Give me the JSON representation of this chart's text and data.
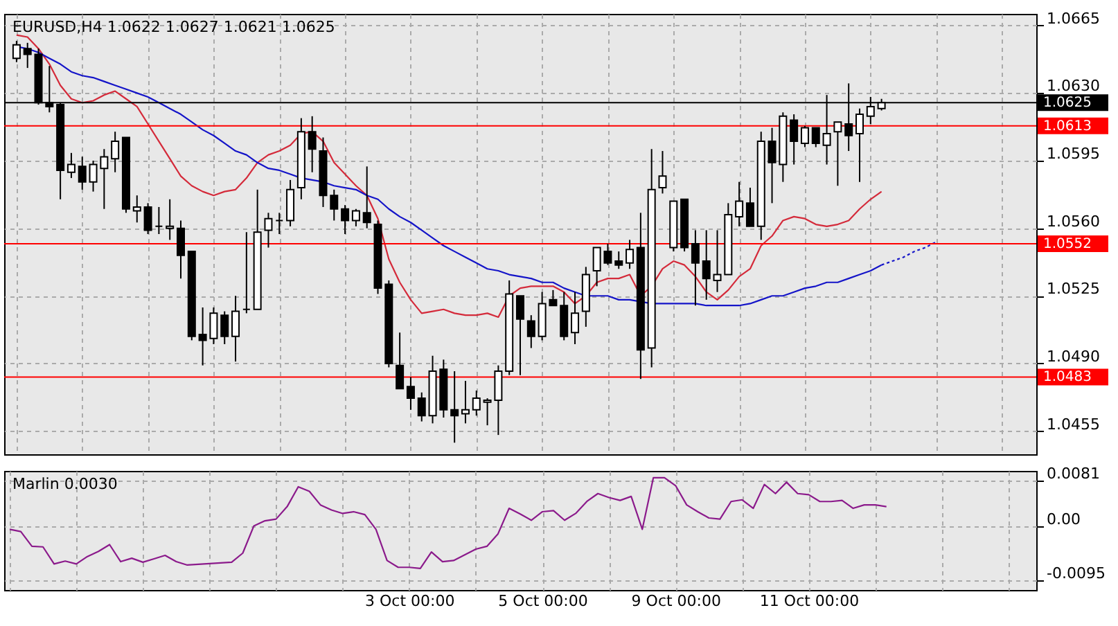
{
  "chart_data": [
    {
      "type": "candlestick",
      "title": "EURUSD,H4 1.0622 1.0627 1.0621 1.0625",
      "categories": [
        null,
        null,
        null,
        null,
        null,
        null,
        null,
        null,
        null,
        null,
        null,
        null,
        null,
        null,
        null,
        null,
        null,
        null,
        null,
        null,
        null,
        null,
        null,
        null,
        null,
        null,
        null,
        null,
        null,
        null,
        null,
        null,
        null,
        null,
        null,
        null,
        null,
        null,
        null,
        null,
        null,
        null,
        null,
        null,
        null,
        null,
        null,
        null,
        null,
        null,
        null,
        null,
        null,
        null,
        null,
        null,
        null,
        null,
        null,
        null,
        null,
        null,
        null,
        null,
        null,
        null,
        null,
        null,
        null,
        null,
        null,
        null,
        null,
        null,
        null,
        null,
        null,
        null,
        null,
        null,
        null,
        null,
        null,
        null,
        null
      ],
      "ohlc": [
        [
          1.0648,
          1.0657,
          1.0646,
          1.0655
        ],
        [
          1.0653,
          1.0656,
          1.0643,
          1.065
        ],
        [
          1.065,
          1.0653,
          1.0624,
          1.0625
        ],
        [
          1.0625,
          1.0644,
          1.062,
          1.0623
        ],
        [
          1.0624,
          1.0625,
          1.0575,
          1.059
        ],
        [
          1.0589,
          1.0599,
          1.0586,
          1.0593
        ],
        [
          1.0592,
          1.0597,
          1.058,
          1.0584
        ],
        [
          1.0584,
          1.0595,
          1.0579,
          1.0593
        ],
        [
          1.0591,
          1.0601,
          1.057,
          1.0597
        ],
        [
          1.0596,
          1.061,
          1.0589,
          1.0605
        ],
        [
          1.0607,
          1.0607,
          1.0568,
          1.057
        ],
        [
          1.0569,
          1.0577,
          1.0563,
          1.0571
        ],
        [
          1.0571,
          1.0573,
          1.0557,
          1.0559
        ],
        [
          1.0561,
          1.0571,
          1.0557,
          1.0561
        ],
        [
          1.056,
          1.0575,
          1.0554,
          1.0561
        ],
        [
          1.056,
          1.0564,
          1.0534,
          1.0546
        ],
        [
          1.0548,
          1.0548,
          1.0502,
          1.0504
        ],
        [
          1.0505,
          1.0519,
          1.0489,
          1.0502
        ],
        [
          1.0503,
          1.0519,
          1.05,
          1.0516
        ],
        [
          1.0515,
          1.0517,
          1.05,
          1.0504
        ],
        [
          1.0504,
          1.0525,
          1.0491,
          1.0517
        ],
        [
          1.0518,
          1.0558,
          1.0516,
          1.0518
        ],
        [
          1.0518,
          1.058,
          1.0518,
          1.0558
        ],
        [
          1.0559,
          1.0568,
          1.055,
          1.0565
        ],
        [
          1.0564,
          1.0568,
          1.0557,
          1.0564
        ],
        [
          1.0564,
          1.0585,
          1.0561,
          1.058
        ],
        [
          1.0581,
          1.0617,
          1.0575,
          1.061
        ],
        [
          1.061,
          1.0618,
          1.0589,
          1.0601
        ],
        [
          1.06,
          1.0607,
          1.0571,
          1.0577
        ],
        [
          1.0577,
          1.058,
          1.0564,
          1.057
        ],
        [
          1.057,
          1.0572,
          1.0557,
          1.0564
        ],
        [
          1.0564,
          1.057,
          1.0561,
          1.0569
        ],
        [
          1.0568,
          1.0592,
          1.056,
          1.0563
        ],
        [
          1.0562,
          1.0564,
          1.0526,
          1.0529
        ],
        [
          1.0531,
          1.0533,
          1.0488,
          1.049
        ],
        [
          1.0489,
          1.0506,
          1.0477,
          1.0477
        ],
        [
          1.0478,
          1.0483,
          1.0466,
          1.0472
        ],
        [
          1.0472,
          1.0475,
          1.046,
          1.0463
        ],
        [
          1.0463,
          1.0494,
          1.0459,
          1.0486
        ],
        [
          1.0487,
          1.0492,
          1.0462,
          1.0466
        ],
        [
          1.0466,
          1.0486,
          1.0449,
          1.0463
        ],
        [
          1.0464,
          1.0481,
          1.0459,
          1.0466
        ],
        [
          1.0466,
          1.0476,
          1.0463,
          1.0472
        ],
        [
          1.047,
          1.0472,
          1.0458,
          1.0471
        ],
        [
          1.0471,
          1.0489,
          1.0453,
          1.0486
        ],
        [
          1.0486,
          1.0533,
          1.0484,
          1.0526
        ],
        [
          1.0525,
          1.0525,
          1.0484,
          1.0513
        ],
        [
          1.0512,
          1.0515,
          1.0498,
          1.0504
        ],
        [
          1.0504,
          1.0527,
          1.0502,
          1.0521
        ],
        [
          1.0523,
          1.0528,
          1.052,
          1.052
        ],
        [
          1.052,
          1.0527,
          1.0502,
          1.0504
        ],
        [
          1.0506,
          1.0527,
          1.05,
          1.0516
        ],
        [
          1.0517,
          1.054,
          1.0509,
          1.0536
        ],
        [
          1.0538,
          1.055,
          1.053,
          1.055
        ],
        [
          1.0548,
          1.0552,
          1.0541,
          1.0542
        ],
        [
          1.0543,
          1.0548,
          1.0539,
          1.0541
        ],
        [
          1.0542,
          1.0554,
          1.0539,
          1.0549
        ],
        [
          1.055,
          1.0568,
          1.0482,
          1.0497
        ],
        [
          1.0498,
          1.0601,
          1.0488,
          1.058
        ],
        [
          1.0581,
          1.06,
          1.0578,
          1.0587
        ],
        [
          1.055,
          1.0574,
          1.0548,
          1.0574
        ],
        [
          1.0575,
          1.0575,
          1.0548,
          1.055
        ],
        [
          1.0552,
          1.0559,
          1.052,
          1.0542
        ],
        [
          1.0543,
          1.0559,
          1.0523,
          1.0534
        ],
        [
          1.0533,
          1.0559,
          1.0527,
          1.0536
        ],
        [
          1.0536,
          1.0573,
          1.0536,
          1.0567
        ],
        [
          1.0566,
          1.0584,
          1.0561,
          1.0574
        ],
        [
          1.0573,
          1.0581,
          1.0561,
          1.0561
        ],
        [
          1.0561,
          1.061,
          1.0554,
          1.0605
        ],
        [
          1.0605,
          1.0612,
          1.0573,
          1.0594
        ],
        [
          1.0593,
          1.062,
          1.0584,
          1.0618
        ],
        [
          1.0616,
          1.0619,
          1.0593,
          1.0605
        ],
        [
          1.0604,
          1.0613,
          1.0602,
          1.0612
        ],
        [
          1.0612,
          1.0612,
          1.0602,
          1.0604
        ],
        [
          1.0603,
          1.0629,
          1.0593,
          1.0609
        ],
        [
          1.061,
          1.0615,
          1.0582,
          1.0615
        ],
        [
          1.0614,
          1.0635,
          1.06,
          1.0608
        ],
        [
          1.0609,
          1.0622,
          1.0584,
          1.0619
        ],
        [
          1.0618,
          1.0628,
          1.0614,
          1.0623
        ],
        [
          1.0622,
          1.0627,
          1.0621,
          1.0625
        ],
        null,
        null,
        null,
        null,
        null
      ],
      "series": [
        {
          "type": "line",
          "color": "#d42a3a",
          "values": [
            1.066,
            1.0659,
            1.0653,
            1.0645,
            1.0634,
            1.0627,
            1.0625,
            1.0626,
            1.0629,
            1.0631,
            1.0627,
            1.0623,
            1.0614,
            1.0605,
            1.0596,
            1.0587,
            1.0582,
            1.0579,
            1.0577,
            1.0579,
            1.058,
            1.0586,
            1.0594,
            1.0598,
            1.06,
            1.0603,
            1.0609,
            1.061,
            1.0605,
            1.0594,
            1.0588,
            1.0582,
            1.0577,
            1.0565,
            1.0544,
            1.0532,
            1.0523,
            1.0516,
            1.0517,
            1.0518,
            1.0516,
            1.0515,
            1.0515,
            1.0516,
            1.0514,
            1.0525,
            1.0529,
            1.053,
            1.053,
            1.053,
            1.0527,
            1.0521,
            1.0525,
            1.0532,
            1.0534,
            1.0534,
            1.0536,
            1.0525,
            1.053,
            1.0539,
            1.0543,
            1.0541,
            1.0535,
            1.0527,
            1.0523,
            1.0528,
            1.0535,
            1.0539,
            1.0551,
            1.0556,
            1.0564,
            1.0566,
            1.0565,
            1.0562,
            1.0561,
            1.0562,
            1.0564,
            1.057,
            1.0575,
            1.0579,
            null,
            null,
            null,
            null,
            null
          ]
        },
        {
          "type": "line",
          "color": "#1414c8",
          "values": [
            1.0654,
            1.0653,
            1.0651,
            1.0648,
            1.0645,
            1.0641,
            1.0639,
            1.0638,
            1.0636,
            1.0634,
            1.0632,
            1.063,
            1.0628,
            1.0625,
            1.0622,
            1.0619,
            1.0615,
            1.0611,
            1.0608,
            1.0604,
            1.06,
            1.0598,
            1.0594,
            1.0591,
            1.059,
            1.0588,
            1.0586,
            1.0585,
            1.0584,
            1.0582,
            1.0581,
            1.058,
            1.0577,
            1.0575,
            1.057,
            1.0566,
            1.0563,
            1.0559,
            1.0555,
            1.0551,
            1.0548,
            1.0545,
            1.0542,
            1.0539,
            1.0538,
            1.0536,
            1.0535,
            1.0534,
            1.0532,
            1.0532,
            1.0529,
            1.0527,
            1.0525,
            1.0525,
            1.0525,
            1.0523,
            1.0523,
            1.0522,
            1.0521,
            1.0521,
            1.0521,
            1.0521,
            1.0521,
            1.052,
            1.052,
            1.052,
            1.052,
            1.0521,
            1.0523,
            1.0525,
            1.0525,
            1.0527,
            1.0529,
            1.053,
            1.0532,
            1.0532,
            1.0534,
            1.0536,
            1.0538,
            1.0541,
            null,
            null,
            null,
            null,
            null
          ]
        },
        {
          "type": "line",
          "color": "#1414c8",
          "line_style": "dotted",
          "values": [
            null,
            null,
            null,
            null,
            null,
            null,
            null,
            null,
            null,
            null,
            null,
            null,
            null,
            null,
            null,
            null,
            null,
            null,
            null,
            null,
            null,
            null,
            null,
            null,
            null,
            null,
            null,
            null,
            null,
            null,
            null,
            null,
            null,
            null,
            null,
            null,
            null,
            null,
            null,
            null,
            null,
            null,
            null,
            null,
            null,
            null,
            null,
            null,
            null,
            null,
            null,
            null,
            null,
            null,
            null,
            null,
            null,
            null,
            null,
            null,
            null,
            null,
            null,
            null,
            null,
            null,
            null,
            null,
            null,
            null,
            null,
            null,
            null,
            null,
            null,
            null,
            null,
            null,
            null,
            1.0541,
            1.0543,
            1.0545,
            1.0548,
            1.055,
            1.0553
          ]
        }
      ],
      "ylim": [
        1.0443,
        1.0671
      ],
      "yticks": [
        1.0455,
        {
          "value": 1.049,
          "label": "1.0490"
        },
        1.0525,
        {
          "value": 1.056,
          "label": "1.0560"
        },
        1.0595,
        {
          "value": 1.063,
          "label": "1.0630"
        },
        1.0665
      ],
      "grid": true,
      "tick_labels": "y",
      "ref_lines": [
        {
          "axis": "y",
          "value": 1.0613,
          "label": "1.0613",
          "color": "#ff0000"
        },
        {
          "axis": "y",
          "value": 1.0552,
          "label": "1.0552",
          "color": "#ff0000"
        },
        {
          "axis": "y",
          "value": 1.0483,
          "label": "1.0483",
          "color": "#ff0000"
        },
        {
          "axis": "y",
          "value": 1.0625,
          "label": "1.0625",
          "color": "#000000"
        }
      ]
    },
    {
      "type": "line",
      "title": "Marlin 0.0030",
      "categories": [
        null,
        null,
        null,
        null,
        null,
        null,
        null,
        null,
        null,
        null,
        null,
        null,
        null,
        null,
        null,
        null,
        null,
        null,
        null,
        null,
        null,
        null,
        null,
        null,
        null,
        null,
        null,
        null,
        null,
        null,
        null,
        null,
        null,
        null,
        null,
        null,
        "3 Oct 00:00",
        null,
        null,
        null,
        null,
        null,
        null,
        null,
        null,
        null,
        null,
        null,
        "5 Oct 00:00",
        null,
        null,
        null,
        null,
        null,
        null,
        null,
        null,
        null,
        null,
        null,
        "9 Oct 00:00",
        null,
        null,
        null,
        null,
        null,
        null,
        null,
        null,
        null,
        null,
        null,
        "11 Oct 00:00",
        null,
        null,
        null,
        null,
        null,
        null,
        null,
        null,
        null,
        null,
        null,
        null
      ],
      "series": [
        {
          "color": "#8b1a8b",
          "values": [
            -0.0005,
            -0.0009,
            -0.0035,
            -0.0036,
            -0.0066,
            -0.0061,
            -0.0066,
            -0.0053,
            -0.0044,
            -0.0032,
            -0.0062,
            -0.0056,
            -0.0063,
            -0.0057,
            -0.0051,
            -0.0062,
            -0.0068,
            null,
            null,
            null,
            -0.0063,
            -0.0047,
            0.0001,
            0.001,
            0.0013,
            0.0035,
            0.007,
            0.0062,
            0.0038,
            0.0029,
            0.0023,
            0.0026,
            0.0021,
            -0.0005,
            -0.006,
            -0.0072,
            -0.0072,
            -0.0074,
            -0.0045,
            -0.0062,
            -0.006,
            -0.005,
            -0.004,
            -0.0035,
            -0.0013,
            0.0032,
            0.0022,
            0.0011,
            0.0026,
            0.0028,
            0.0011,
            0.0023,
            0.0044,
            0.0058,
            0.0051,
            0.0046,
            0.0053,
            -0.0005,
            0.0086,
            0.0086,
            0.0072,
            0.0038,
            0.0026,
            0.0015,
            0.0013,
            0.0044,
            0.0047,
            0.0032,
            0.0074,
            0.0058,
            0.0078,
            0.0058,
            0.0056,
            0.0044,
            0.0044,
            0.0046,
            0.0032,
            0.0038,
            0.0038,
            0.0035,
            null,
            null,
            null,
            null,
            null
          ]
        }
      ],
      "ylim": [
        -0.0112,
        0.0098
      ],
      "yticks": [
        0.0081,
        {
          "value": 0,
          "label": "0.00"
        },
        -0.0095
      ],
      "grid": true
    }
  ]
}
